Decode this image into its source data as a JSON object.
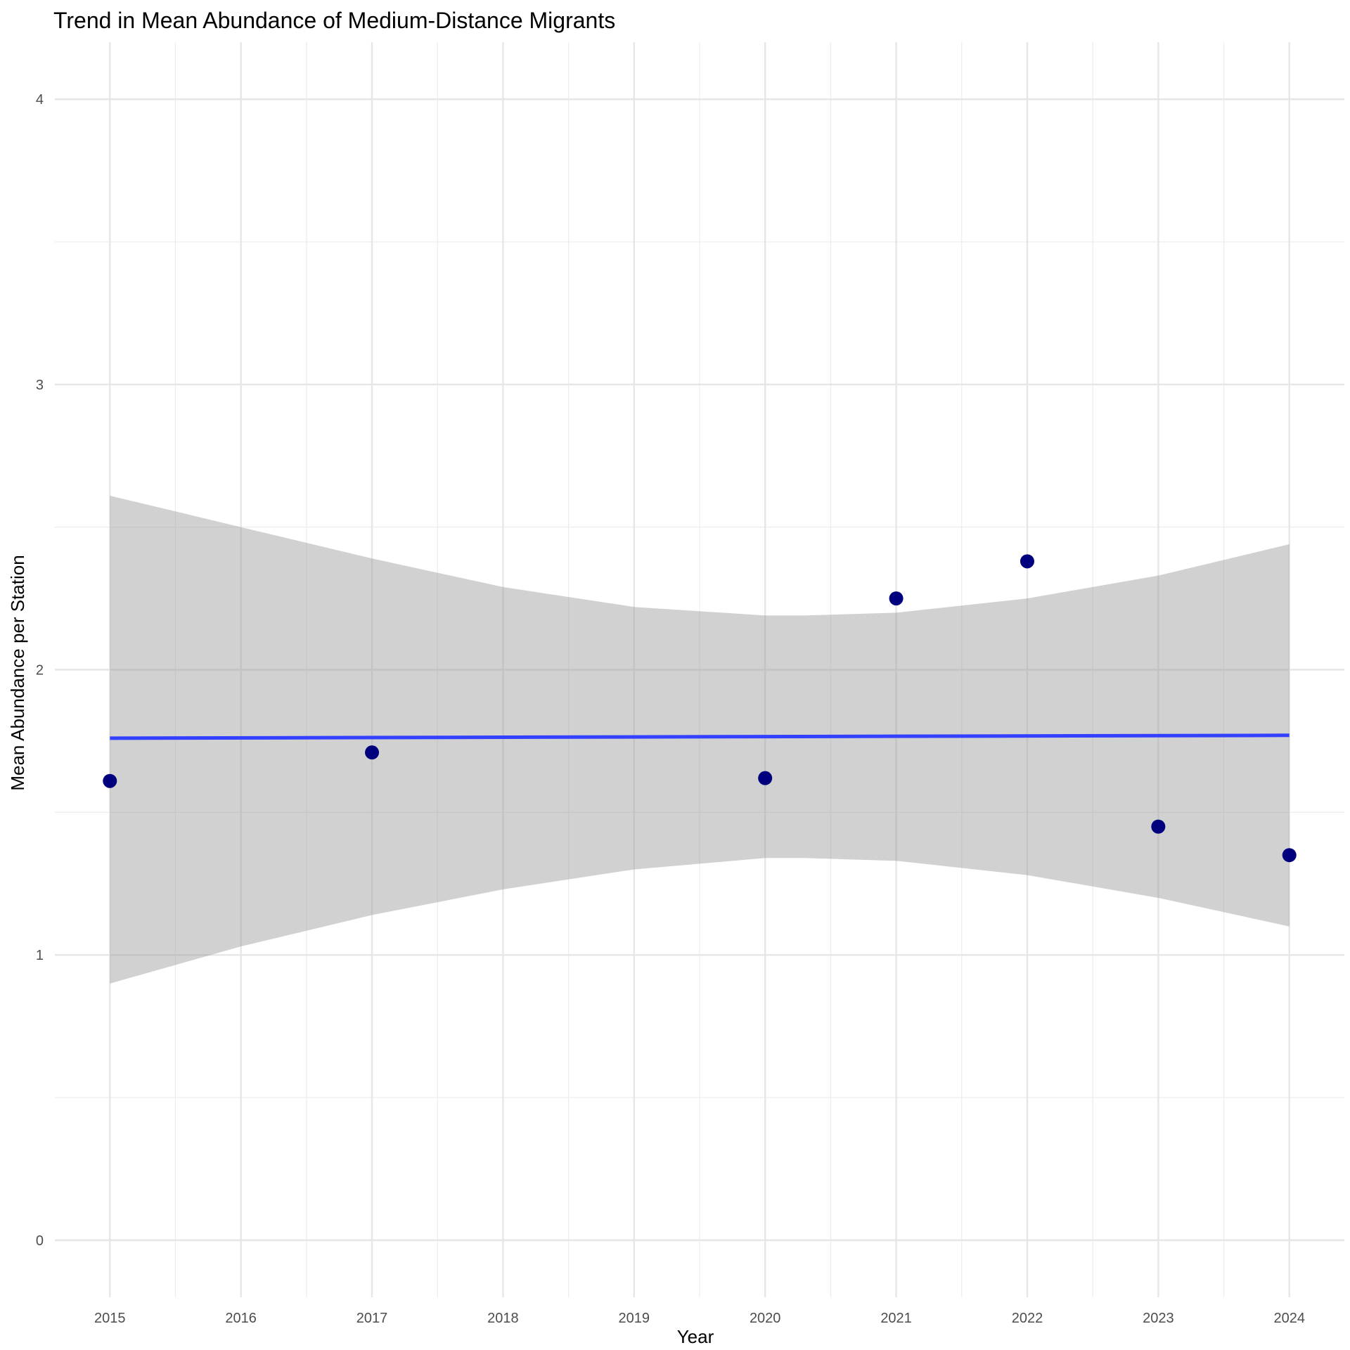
{
  "chart_data": {
    "type": "scatter",
    "title": "Trend in Mean Abundance of Medium-Distance Migrants",
    "xlabel": "Year",
    "ylabel": "Mean Abundance per Station",
    "xlim": [
      2014.58,
      2024.42
    ],
    "ylim": [
      -0.2,
      4.2
    ],
    "x_ticks": [
      2015,
      2016,
      2017,
      2018,
      2019,
      2020,
      2021,
      2022,
      2023,
      2024
    ],
    "y_ticks": [
      0,
      1,
      2,
      3,
      4
    ],
    "grid": true,
    "legend": "none",
    "points": {
      "x": [
        2015,
        2017,
        2020,
        2021,
        2022,
        2023,
        2024
      ],
      "y": [
        1.61,
        1.71,
        1.62,
        2.25,
        2.38,
        1.45,
        1.35
      ]
    },
    "trend": {
      "x": [
        2015,
        2024
      ],
      "y": [
        1.76,
        1.77
      ]
    },
    "confidence_band": {
      "x": [
        2015,
        2016,
        2017,
        2018,
        2019,
        2020,
        2020.3,
        2021,
        2022,
        2023,
        2024
      ],
      "upper": [
        2.61,
        2.5,
        2.39,
        2.29,
        2.22,
        2.19,
        2.19,
        2.2,
        2.25,
        2.33,
        2.44
      ],
      "lower": [
        0.9,
        1.03,
        1.14,
        1.23,
        1.3,
        1.34,
        1.34,
        1.33,
        1.28,
        1.2,
        1.1
      ]
    },
    "colors": {
      "points": "#00007f",
      "trend": "#3340ff",
      "band": "#999999"
    }
  }
}
